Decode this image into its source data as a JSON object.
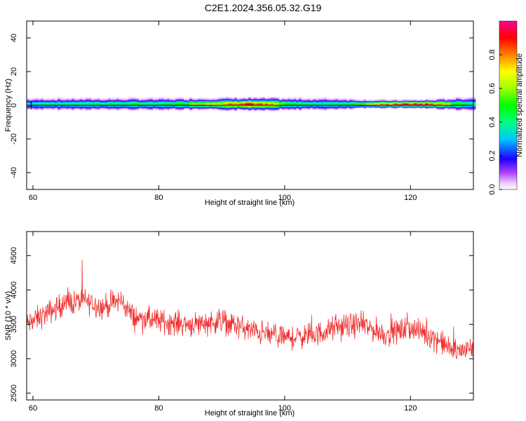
{
  "page": {
    "title": "C2E1.2024.356.05.32.G19"
  },
  "chart_data": [
    {
      "type": "heatmap",
      "xlabel": "Height of straight line (km)",
      "ylabel": "Frequency (Hz)",
      "xlim": [
        59,
        130
      ],
      "ylim": [
        -50,
        50
      ],
      "xticks": [
        60,
        80,
        100,
        120
      ],
      "yticks": [
        -40,
        -20,
        0,
        20,
        40
      ],
      "xtick_labels": [
        "60",
        "80",
        "100",
        "120"
      ],
      "ytick_labels": [
        "-40",
        "-20",
        "0",
        "20",
        "40"
      ],
      "grid": false,
      "reference_line_y": 0,
      "colorbar": {
        "label": "Normalized spectral amplitude",
        "range": [
          0,
          1
        ],
        "ticks": [
          0.0,
          0.2,
          0.4,
          0.6,
          0.8
        ],
        "tick_labels": [
          "0.0",
          "0.2",
          "0.4",
          "0.6",
          "0.8"
        ],
        "stops": [
          {
            "v": 0.0,
            "color": "#ffffff"
          },
          {
            "v": 0.04,
            "color": "#e8c8ff"
          },
          {
            "v": 0.1,
            "color": "#b040ff"
          },
          {
            "v": 0.18,
            "color": "#2000ff"
          },
          {
            "v": 0.3,
            "color": "#00c8ff"
          },
          {
            "v": 0.4,
            "color": "#00ff80"
          },
          {
            "v": 0.5,
            "color": "#00ff00"
          },
          {
            "v": 0.6,
            "color": "#a0ff00"
          },
          {
            "v": 0.7,
            "color": "#ffff00"
          },
          {
            "v": 0.8,
            "color": "#ff8000"
          },
          {
            "v": 0.9,
            "color": "#ff0000"
          },
          {
            "v": 1.0,
            "color": "#ff0090"
          }
        ]
      },
      "band": {
        "center_hz": 1,
        "heights_km": [
          59,
          62,
          65,
          68,
          71,
          74,
          77,
          80,
          83,
          86,
          89,
          92,
          94,
          96,
          98,
          100,
          103,
          106,
          109,
          112,
          115,
          118,
          121,
          124,
          127,
          130
        ],
        "peak_amplitude": [
          0.35,
          0.42,
          0.4,
          0.45,
          0.43,
          0.45,
          0.44,
          0.45,
          0.5,
          0.62,
          0.7,
          0.85,
          0.95,
          0.8,
          0.75,
          0.5,
          0.45,
          0.42,
          0.45,
          0.55,
          0.75,
          0.88,
          0.9,
          0.82,
          0.55,
          0.4
        ],
        "halfwidth_hz": [
          2,
          2,
          2,
          2,
          2,
          2,
          2,
          2,
          2,
          2,
          2,
          2,
          2,
          2,
          2,
          2,
          2,
          2,
          2,
          1.5,
          1.3,
          1.3,
          1.3,
          1.5,
          2,
          2.5
        ]
      }
    },
    {
      "type": "line",
      "xlabel": "Height of straight line (km)",
      "ylabel": "SNR (10 * v/v)",
      "xlim": [
        59,
        130
      ],
      "ylim": [
        2400,
        4850
      ],
      "xticks": [
        60,
        80,
        100,
        120
      ],
      "yticks": [
        2500,
        3000,
        3500,
        4000,
        4500
      ],
      "xtick_labels": [
        "60",
        "80",
        "100",
        "120"
      ],
      "ytick_labels": [
        "2500",
        "3000",
        "3500",
        "4000",
        "4500"
      ],
      "grid": false,
      "series": [
        {
          "color": "#f03030",
          "sample_spacing_km": 0.06,
          "trend": {
            "x": [
              59,
              62,
              65,
              68,
              71,
              74,
              76,
              80,
              85,
              90,
              95,
              100,
              105,
              108,
              112,
              116,
              120,
              124,
              127,
              130
            ],
            "y": [
              3500,
              3650,
              3800,
              3850,
              3750,
              3850,
              3600,
              3550,
              3500,
              3550,
              3400,
              3300,
              3350,
              3450,
              3500,
              3350,
              3450,
              3300,
              3100,
              3150
            ]
          },
          "noise_amplitude": 260
        }
      ]
    }
  ]
}
